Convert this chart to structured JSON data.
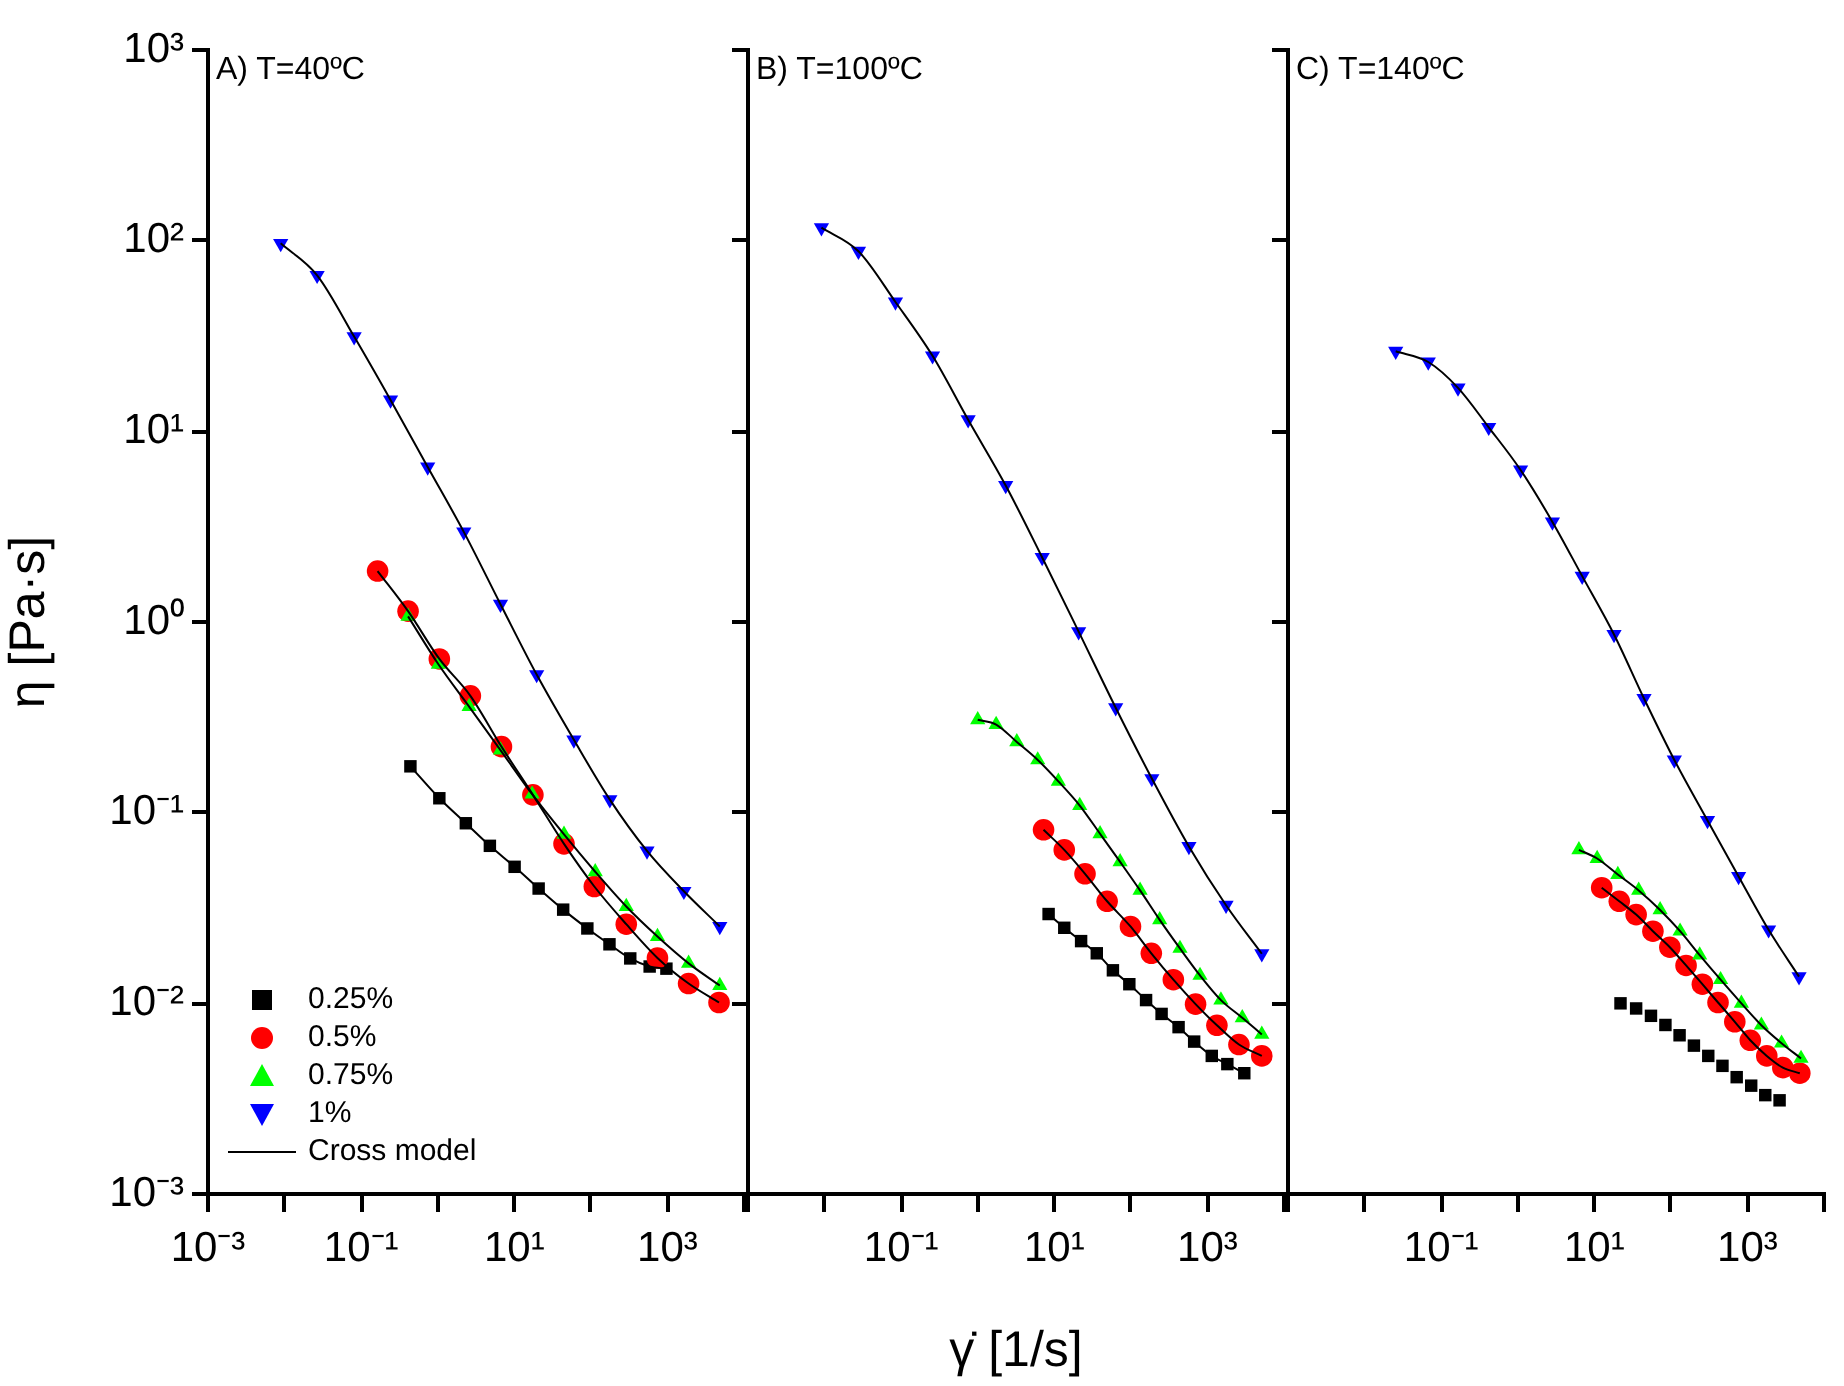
{
  "chart_data": [
    {
      "type": "scatter",
      "title": "A) T=40ºC",
      "ylabel": "η [Pa·s]",
      "log": "xy",
      "legend": "bottom left",
      "xlim": [
        0.001,
        10000
      ],
      "ylim": [
        0.001,
        1000
      ],
      "xticks": [
        {
          "value": 0.001,
          "label": "10⁻³"
        },
        {
          "value": 0.01,
          "label": null
        },
        {
          "value": 0.1,
          "label": "10⁻¹"
        },
        {
          "value": 1,
          "label": null
        },
        {
          "value": 10,
          "label": "10¹"
        },
        {
          "value": 100,
          "label": null
        },
        {
          "value": 1000,
          "label": "10³"
        },
        {
          "value": 10000,
          "label": null
        }
      ],
      "yticks": [
        {
          "value": 0.001,
          "label": "10⁻³"
        },
        {
          "value": 0.01,
          "label": "10⁻²"
        },
        {
          "value": 0.1,
          "label": "10⁻¹"
        },
        {
          "value": 1,
          "label": "10⁰"
        },
        {
          "value": 10,
          "label": "10¹"
        },
        {
          "value": 100,
          "label": "10²"
        },
        {
          "value": 1000,
          "label": "10³"
        }
      ],
      "series": [
        {
          "name": "0.25%",
          "color": "#000000",
          "marker": "square",
          "x": [
            0.44,
            1.05,
            2.33,
            4.8,
            10.1,
            20.8,
            43.5,
            90,
            175,
            327,
            586,
            970
          ],
          "values": [
            0.175,
            0.119,
            0.088,
            0.067,
            0.052,
            0.04,
            0.031,
            0.0247,
            0.0204,
            0.0172,
            0.0156,
            0.0152
          ]
        },
        {
          "name": "0.5%",
          "color": "#ff0000",
          "marker": "circle",
          "x": [
            0.164,
            0.41,
            1.05,
            2.67,
            6.8,
            17.5,
            44.6,
            111,
            290,
            741,
            1890,
            4720
          ],
          "values": [
            1.85,
            1.14,
            0.64,
            0.41,
            0.222,
            0.124,
            0.0686,
            0.041,
            0.026,
            0.0173,
            0.0127,
            0.0101
          ]
        },
        {
          "name": "0.75%",
          "color": "#00ff00",
          "marker": "triangle",
          "x": [
            0.41,
            1.02,
            2.57,
            6.6,
            17.1,
            44.6,
            114,
            290,
            741,
            1890,
            4830
          ],
          "values": [
            1.07,
            0.6,
            0.36,
            0.213,
            0.125,
            0.0769,
            0.049,
            0.0322,
            0.0224,
            0.0162,
            0.0124
          ]
        },
        {
          "name": "1%",
          "color": "#0000ff",
          "marker": "triangle-down",
          "x": [
            0.0089,
            0.0266,
            0.081,
            0.242,
            0.74,
            2.19,
            6.6,
            19.6,
            60,
            177,
            541,
            1640,
            4830
          ],
          "values": [
            96.8,
            65.8,
            31.4,
            14.6,
            6.5,
            2.97,
            1.24,
            0.53,
            0.241,
            0.117,
            0.063,
            0.0387,
            0.0253
          ]
        },
        {
          "name": "Cross model",
          "type": "line",
          "color": "#000000",
          "marker": "none",
          "x": [
            0.44,
            1.05,
            2.33,
            4.8,
            10.1,
            20.8,
            43.5,
            90,
            175,
            327,
            586,
            970
          ],
          "values": [
            0.175,
            0.119,
            0.088,
            0.067,
            0.052,
            0.04,
            0.031,
            0.0247,
            0.0204,
            0.0172,
            0.0156,
            0.0152
          ]
        },
        {
          "type": "line",
          "color": "#000000",
          "marker": "none",
          "x": [
            0.164,
            0.41,
            1.05,
            2.67,
            6.8,
            17.5,
            44.6,
            111,
            290,
            741,
            1890,
            4720
          ],
          "values": [
            1.85,
            1.14,
            0.64,
            0.41,
            0.222,
            0.124,
            0.0686,
            0.041,
            0.026,
            0.0173,
            0.0127,
            0.0101
          ]
        },
        {
          "type": "line",
          "color": "#000000",
          "marker": "none",
          "x": [
            0.41,
            1.02,
            2.57,
            6.6,
            17.1,
            44.6,
            114,
            290,
            741,
            1890,
            4830
          ],
          "values": [
            1.07,
            0.6,
            0.36,
            0.213,
            0.125,
            0.0769,
            0.049,
            0.0322,
            0.0224,
            0.0162,
            0.0124
          ]
        },
        {
          "type": "line",
          "color": "#000000",
          "marker": "none",
          "x": [
            0.0089,
            0.0266,
            0.081,
            0.242,
            0.74,
            2.19,
            6.6,
            19.6,
            60,
            177,
            541,
            1640,
            4830
          ],
          "values": [
            96.8,
            65.8,
            31.4,
            14.6,
            6.5,
            2.97,
            1.24,
            0.53,
            0.241,
            0.117,
            0.063,
            0.0387,
            0.0253
          ]
        }
      ]
    },
    {
      "type": "scatter",
      "title": "B) T=100ºC",
      "xlabel": "γ̇ [1/s]",
      "log": "xy",
      "tick_labels": "x",
      "xlim": [
        0.001,
        10000
      ],
      "ylim": [
        0.001,
        1000
      ],
      "xticks": [
        {
          "value": 0.001,
          "label": null
        },
        {
          "value": 0.01,
          "label": null
        },
        {
          "value": 0.1,
          "label": "10⁻¹"
        },
        {
          "value": 1,
          "label": null
        },
        {
          "value": 10,
          "label": "10¹"
        },
        {
          "value": 100,
          "label": null
        },
        {
          "value": 1000,
          "label": "10³"
        },
        {
          "value": 10000,
          "label": null
        }
      ],
      "yticks": [
        {
          "value": 0.001,
          "label": null
        },
        {
          "value": 0.01,
          "label": null
        },
        {
          "value": 0.1,
          "label": null
        },
        {
          "value": 1,
          "label": null
        },
        {
          "value": 10,
          "label": null
        },
        {
          "value": 100,
          "label": null
        },
        {
          "value": 1000,
          "label": null
        }
      ],
      "series": [
        {
          "color": "#000000",
          "marker": "square",
          "x": [
            8.43,
            13.5,
            22.4,
            35.9,
            58.3,
            95.5,
            158,
            252,
            420,
            671,
            1140,
            1820,
            3030
          ],
          "values": [
            0.0294,
            0.0249,
            0.0212,
            0.0183,
            0.0149,
            0.0126,
            0.0104,
            0.0088,
            0.0075,
            0.0063,
            0.0053,
            0.0048,
            0.0043
          ]
        },
        {
          "color": "#ff0000",
          "marker": "circle",
          "x": [
            7.24,
            13.5,
            25.2,
            49,
            98.9,
            185,
            359,
            700,
            1330,
            2580,
            5130
          ],
          "values": [
            0.0813,
            0.0638,
            0.0478,
            0.0343,
            0.0253,
            0.0183,
            0.0133,
            0.0099,
            0.00767,
            0.00608,
            0.0053
          ]
        },
        {
          "color": "#00ff00",
          "marker": "triangle",
          "x": [
            1.0,
            1.74,
            3.24,
            6.08,
            11.3,
            21.5,
            39.6,
            72.4,
            132,
            238,
            438,
            800,
            1500,
            2850,
            5130
          ],
          "values": [
            0.307,
            0.29,
            0.235,
            0.189,
            0.146,
            0.109,
            0.0775,
            0.0552,
            0.0391,
            0.0274,
            0.0194,
            0.014,
            0.0104,
            0.0084,
            0.00687
          ]
        },
        {
          "color": "#0000ff",
          "marker": "triangle-down",
          "x": [
            0.0091,
            0.0277,
            0.0843,
            0.257,
            0.75,
            2.32,
            6.95,
            20.8,
            63.4,
            188,
            573,
            1750,
            5130
          ],
          "values": [
            117,
            88,
            47.7,
            24.9,
            11.5,
            5.2,
            2.18,
            0.89,
            0.355,
            0.151,
            0.0665,
            0.0327,
            0.0182
          ]
        },
        {
          "type": "line",
          "color": "#000000",
          "marker": "none",
          "x": [
            8.43,
            13.5,
            22.4,
            35.9,
            58.3,
            95.5,
            158,
            252,
            420,
            671,
            1140,
            1820,
            3030
          ],
          "values": [
            0.0294,
            0.0249,
            0.0212,
            0.0183,
            0.0149,
            0.0126,
            0.0104,
            0.0088,
            0.0075,
            0.0063,
            0.0053,
            0.0048,
            0.0043
          ]
        },
        {
          "type": "line",
          "color": "#000000",
          "marker": "none",
          "x": [
            7.24,
            13.5,
            25.2,
            49,
            98.9,
            185,
            359,
            700,
            1330,
            2580,
            5130
          ],
          "values": [
            0.0813,
            0.0638,
            0.0478,
            0.0343,
            0.0253,
            0.0183,
            0.0133,
            0.0099,
            0.00767,
            0.00608,
            0.0053
          ]
        },
        {
          "type": "line",
          "color": "#000000",
          "marker": "none",
          "x": [
            1.0,
            1.74,
            3.24,
            6.08,
            11.3,
            21.5,
            39.6,
            72.4,
            132,
            238,
            438,
            800,
            1500,
            2850,
            5130
          ],
          "values": [
            0.307,
            0.29,
            0.235,
            0.189,
            0.146,
            0.109,
            0.0775,
            0.0552,
            0.0391,
            0.0274,
            0.0194,
            0.014,
            0.0104,
            0.0084,
            0.00687
          ]
        },
        {
          "type": "line",
          "color": "#000000",
          "marker": "none",
          "x": [
            0.0091,
            0.0277,
            0.0843,
            0.257,
            0.75,
            2.32,
            6.95,
            20.8,
            63.4,
            188,
            573,
            1750,
            5130
          ],
          "values": [
            117,
            88,
            47.7,
            24.9,
            11.5,
            5.2,
            2.18,
            0.89,
            0.355,
            0.151,
            0.0665,
            0.0327,
            0.0182
          ]
        }
      ]
    },
    {
      "type": "scatter",
      "title": "C) T=140ºC",
      "log": "xy",
      "tick_labels": "x",
      "xlim": [
        0.001,
        10000
      ],
      "ylim": [
        0.001,
        1000
      ],
      "xticks": [
        {
          "value": 0.001,
          "label": null
        },
        {
          "value": 0.01,
          "label": null
        },
        {
          "value": 0.1,
          "label": "10⁻¹"
        },
        {
          "value": 1,
          "label": null
        },
        {
          "value": 10,
          "label": "10¹"
        },
        {
          "value": 100,
          "label": null
        },
        {
          "value": 1000,
          "label": "10³"
        },
        {
          "value": 10000,
          "label": null
        }
      ],
      "yticks": [
        {
          "value": 0.001,
          "label": null
        },
        {
          "value": 0.01,
          "label": null
        },
        {
          "value": 0.1,
          "label": null
        },
        {
          "value": 1,
          "label": null
        },
        {
          "value": 10,
          "label": null
        },
        {
          "value": 100,
          "label": null
        },
        {
          "value": 1000,
          "label": null
        }
      ],
      "series": [
        {
          "color": "#000000",
          "marker": "square",
          "x": [
            22,
            35.2,
            55,
            84.9,
            130,
            200,
            308,
            472,
            724,
            1120,
            1710,
            2630
          ],
          "values": [
            0.01,
            0.0094,
            0.0086,
            0.0077,
            0.0068,
            0.006,
            0.0053,
            0.0047,
            0.0041,
            0.0037,
            0.0033,
            0.0031
          ]
        },
        {
          "color": "#ff0000",
          "marker": "circle",
          "x": [
            12.5,
            21.2,
            35.2,
            58.3,
            97,
            158,
            258,
            413,
            684,
            1090,
            1790,
            2900,
            4830
          ],
          "values": [
            0.0404,
            0.0343,
            0.0292,
            0.0239,
            0.0197,
            0.0158,
            0.0126,
            0.0101,
            0.008,
            0.0064,
            0.0053,
            0.0046,
            0.0043
          ]
        },
        {
          "color": "#00ff00",
          "marker": "triangle",
          "x": [
            6.3,
            10.9,
            20.3,
            38,
            72.4,
            132,
            238,
            446,
            834,
            1520,
            2790,
            5010
          ],
          "values": [
            0.0638,
            0.0575,
            0.0474,
            0.0391,
            0.0309,
            0.0239,
            0.0179,
            0.0133,
            0.01,
            0.00768,
            0.00618,
            0.00514
          ]
        },
        {
          "color": "#0000ff",
          "marker": "triangle-down",
          "x": [
            0.0255,
            0.0679,
            0.166,
            0.418,
            1.09,
            2.84,
            6.95,
            18.1,
            44.6,
            111,
            301,
            767,
            1890,
            4720
          ],
          "values": [
            26.3,
            23.1,
            16.9,
            10.5,
            6.27,
            3.35,
            1.74,
            0.86,
            0.397,
            0.189,
            0.091,
            0.0463,
            0.0243,
            0.0138
          ]
        },
        {
          "type": "line",
          "color": "#000000",
          "marker": "none",
          "x": [
            12.5,
            21.2,
            35.2,
            58.3,
            97,
            158,
            258,
            413,
            684,
            1090,
            1790,
            2900,
            4830
          ],
          "values": [
            0.0404,
            0.0343,
            0.0292,
            0.0239,
            0.0197,
            0.0158,
            0.0126,
            0.0101,
            0.008,
            0.0064,
            0.0053,
            0.0046,
            0.0043
          ]
        },
        {
          "type": "line",
          "color": "#000000",
          "marker": "none",
          "x": [
            6.3,
            10.9,
            20.3,
            38,
            72.4,
            132,
            238,
            446,
            834,
            1520,
            2790,
            5010
          ],
          "values": [
            0.0638,
            0.0575,
            0.0474,
            0.0391,
            0.0309,
            0.0239,
            0.0179,
            0.0133,
            0.01,
            0.00768,
            0.00618,
            0.00514
          ]
        },
        {
          "type": "line",
          "color": "#000000",
          "marker": "none",
          "x": [
            0.0255,
            0.0679,
            0.166,
            0.418,
            1.09,
            2.84,
            6.95,
            18.1,
            44.6,
            111,
            301,
            767,
            1890,
            4720
          ],
          "values": [
            26.3,
            23.1,
            16.9,
            10.5,
            6.27,
            3.35,
            1.74,
            0.86,
            0.397,
            0.189,
            0.091,
            0.0463,
            0.0243,
            0.0138
          ]
        }
      ]
    }
  ]
}
